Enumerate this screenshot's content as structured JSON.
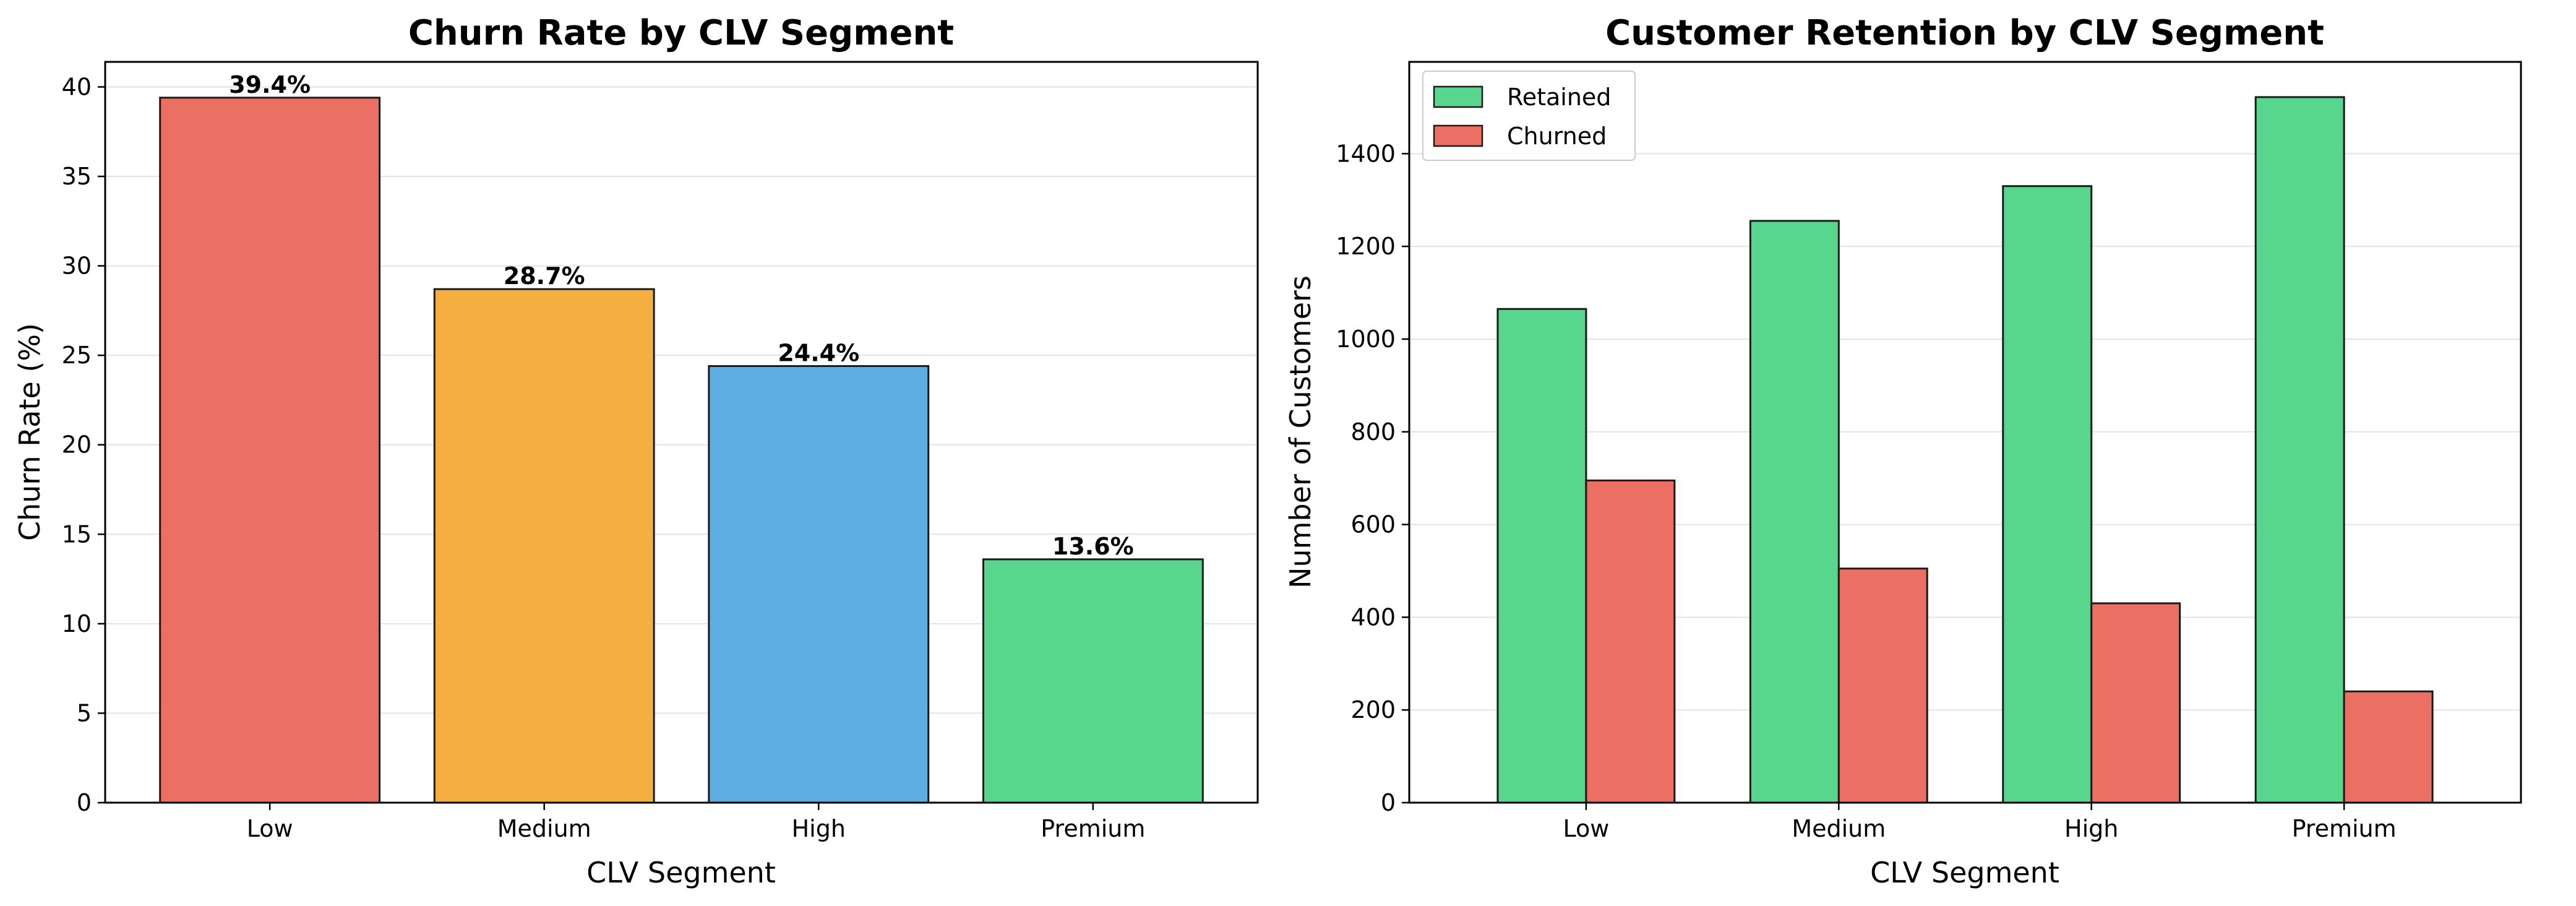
{
  "colors": {
    "low": "#EC6F63",
    "medium": "#F5AF41",
    "high": "#5DADE2",
    "premium": "#58D68D",
    "retained": "#58D68D",
    "churned": "#EC6F63",
    "edge": "#1a1a1a",
    "grid": "#e3e3e3"
  },
  "chart_data": [
    {
      "type": "bar",
      "title": "Churn Rate by CLV Segment",
      "xlabel": "CLV Segment",
      "ylabel": "Churn Rate (%)",
      "categories": [
        "Low",
        "Medium",
        "High",
        "Premium"
      ],
      "values": [
        39.4,
        28.7,
        24.4,
        13.6
      ],
      "value_labels": [
        "39.4%",
        "28.7%",
        "24.4%",
        "13.6%"
      ],
      "ylim": [
        0,
        41.4
      ],
      "yticks": [
        0,
        5,
        10,
        15,
        20,
        25,
        30,
        35,
        40
      ],
      "grid": "y"
    },
    {
      "type": "bar",
      "title": "Customer Retention by CLV Segment",
      "xlabel": "CLV Segment",
      "ylabel": "Number of Customers",
      "categories": [
        "Low",
        "Medium",
        "High",
        "Premium"
      ],
      "series": [
        {
          "name": "Retained",
          "values": [
            1065,
            1255,
            1330,
            1522
          ]
        },
        {
          "name": "Churned",
          "values": [
            695,
            505,
            430,
            240
          ]
        }
      ],
      "ylim": [
        0,
        1598
      ],
      "yticks": [
        0,
        200,
        400,
        600,
        800,
        1000,
        1200,
        1400
      ],
      "legend": "top-left",
      "grid": "y"
    }
  ]
}
